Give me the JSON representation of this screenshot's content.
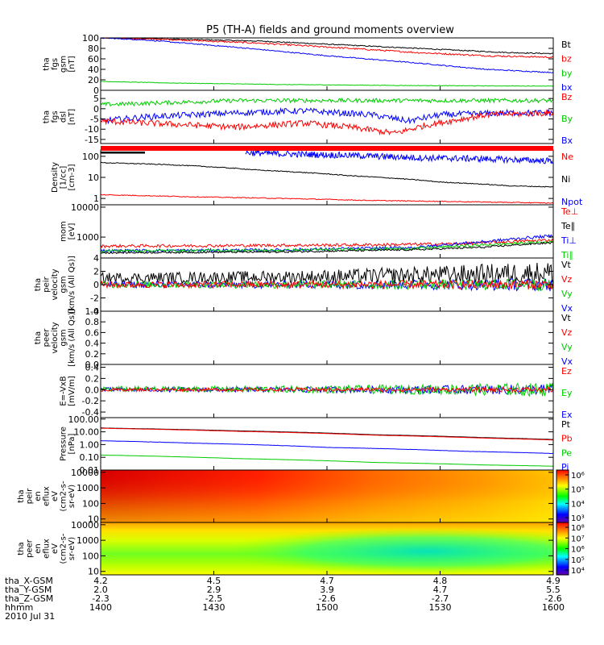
{
  "title": "P5 (TH-A) fields and ground moments overview",
  "chart_data": {
    "type": "line",
    "x_ticks": [
      "1400",
      "1430",
      "1500",
      "1530",
      "1600"
    ],
    "x_label": "hhmm",
    "date_label": "2010 Jul 31",
    "ephemeris": [
      {
        "name": "tha_X-GSM",
        "values": [
          "4.2",
          "4.5",
          "4.7",
          "4.8",
          "4.9"
        ]
      },
      {
        "name": "tha_Y-GSM",
        "values": [
          "2.0",
          "2.9",
          "3.9",
          "4.7",
          "5.5"
        ]
      },
      {
        "name": "tha_Z-GSM",
        "values": [
          "-2.3",
          "-2.5",
          "-2.6",
          "-2.7",
          "-2.6"
        ]
      }
    ],
    "panels": [
      {
        "ylabel_lines": [
          "tha",
          "fgs",
          "gsm",
          "[nT]"
        ],
        "scale": "linear",
        "yrange": [
          0,
          100
        ],
        "ticks": [
          "0",
          "20",
          "40",
          "60",
          "80",
          "100"
        ],
        "legend": [
          {
            "text": "Bt",
            "color": "#000000"
          },
          {
            "text": "bz",
            "color": "#ff0000"
          },
          {
            "text": "by",
            "color": "#00cc00"
          },
          {
            "text": "bx",
            "color": "#0000ff"
          }
        ],
        "series": [
          {
            "color": "#000000",
            "noise": 1.0,
            "points": [
              [
                0,
                100
              ],
              [
                0.15,
                98
              ],
              [
                0.35,
                94
              ],
              [
                0.55,
                86
              ],
              [
                0.75,
                78
              ],
              [
                0.9,
                72
              ],
              [
                1,
                70
              ]
            ]
          },
          {
            "color": "#ff0000",
            "noise": 1.5,
            "points": [
              [
                0,
                100
              ],
              [
                0.15,
                97
              ],
              [
                0.35,
                90
              ],
              [
                0.55,
                80
              ],
              [
                0.7,
                72
              ],
              [
                0.85,
                66
              ],
              [
                1,
                63
              ]
            ]
          },
          {
            "color": "#0000ff",
            "noise": 1.0,
            "points": [
              [
                0,
                100
              ],
              [
                0.1,
                96
              ],
              [
                0.3,
                82
              ],
              [
                0.5,
                66
              ],
              [
                0.7,
                52
              ],
              [
                0.85,
                40
              ],
              [
                1,
                34
              ]
            ]
          },
          {
            "color": "#00cc00",
            "noise": 0.5,
            "points": [
              [
                0,
                17
              ],
              [
                0.15,
                14
              ],
              [
                0.4,
                11
              ],
              [
                0.7,
                9
              ],
              [
                1,
                8
              ]
            ]
          }
        ]
      },
      {
        "ylabel_lines": [
          "tha",
          "fgs",
          "dsl",
          "[nT]"
        ],
        "scale": "linear",
        "yrange": [
          -17,
          9
        ],
        "ticks": [
          "-15",
          "-10",
          "-5",
          "0",
          "5"
        ],
        "legend": [
          {
            "text": "Bz",
            "color": "#ff0000"
          },
          {
            "text": "By",
            "color": "#00cc00"
          },
          {
            "text": "Bx",
            "color": "#0000ff"
          }
        ],
        "series": [
          {
            "color": "#00cc00",
            "noise": 1.0,
            "points": [
              [
                0,
                2
              ],
              [
                0.15,
                3
              ],
              [
                0.3,
                4
              ],
              [
                0.5,
                4
              ],
              [
                0.7,
                4
              ],
              [
                0.85,
                4
              ],
              [
                1,
                4
              ]
            ]
          },
          {
            "color": "#0000ff",
            "noise": 1.5,
            "points": [
              [
                0,
                -6
              ],
              [
                0.1,
                -4
              ],
              [
                0.3,
                -2
              ],
              [
                0.45,
                -1
              ],
              [
                0.6,
                -3
              ],
              [
                0.68,
                -6
              ],
              [
                0.75,
                -3
              ],
              [
                0.9,
                -2
              ],
              [
                1,
                -2
              ]
            ]
          },
          {
            "color": "#ff0000",
            "noise": 1.5,
            "points": [
              [
                0,
                -6
              ],
              [
                0.1,
                -7
              ],
              [
                0.3,
                -9
              ],
              [
                0.45,
                -7
              ],
              [
                0.55,
                -9
              ],
              [
                0.65,
                -12
              ],
              [
                0.72,
                -8
              ],
              [
                0.85,
                -3
              ],
              [
                1,
                -2
              ]
            ]
          }
        ]
      },
      {
        "ylabel_lines": [
          "Density",
          "[1/cc]",
          "[cm-3]"
        ],
        "scale": "log",
        "yrange": [
          0.5,
          200
        ],
        "ticks": [
          "1",
          "10",
          "100"
        ],
        "legend": [
          {
            "text": "Ne",
            "color": "#ff0000"
          },
          {
            "text": "Ni",
            "color": "#000000"
          },
          {
            "text": "Npot",
            "color": "#0000ff"
          }
        ],
        "series": [
          {
            "color": "#0000ff",
            "noise": 0.15,
            "start": 0.32,
            "points": [
              [
                0.32,
                150
              ],
              [
                0.4,
                130
              ],
              [
                0.55,
                110
              ],
              [
                0.7,
                85
              ],
              [
                0.85,
                75
              ],
              [
                1,
                60
              ]
            ]
          },
          {
            "color": "#000000",
            "noise": 0.02,
            "points": [
              [
                0,
                50
              ],
              [
                0.15,
                40
              ],
              [
                0.35,
                22
              ],
              [
                0.55,
                12
              ],
              [
                0.75,
                6
              ],
              [
                0.9,
                4
              ],
              [
                1,
                3.5
              ]
            ]
          },
          {
            "color": "#ff0000",
            "noise": 0.02,
            "points": [
              [
                0,
                1.5
              ],
              [
                0.2,
                1.2
              ],
              [
                0.4,
                1.0
              ],
              [
                0.6,
                0.8
              ],
              [
                0.8,
                0.7
              ],
              [
                1,
                0.6
              ]
            ]
          }
        ]
      },
      {
        "ylabel_lines": [
          "mom",
          "[eV]"
        ],
        "scale": "log",
        "yrange": [
          200,
          12000
        ],
        "ticks": [
          "1000",
          "10000"
        ],
        "legend": [
          {
            "text": "Te⊥",
            "color": "#ff0000"
          },
          {
            "text": "Te∥",
            "color": "#000000"
          },
          {
            "text": "Ti⊥",
            "color": "#0000ff"
          },
          {
            "text": "Ti∥",
            "color": "#00cc00"
          }
        ],
        "series": [
          {
            "color": "#ff0000",
            "noise": 0.05,
            "points": [
              [
                0,
                500
              ],
              [
                0.3,
                520
              ],
              [
                0.6,
                550
              ],
              [
                0.8,
                600
              ],
              [
                1,
                800
              ]
            ]
          },
          {
            "color": "#0000ff",
            "noise": 0.05,
            "points": [
              [
                0,
                350
              ],
              [
                0.4,
                370
              ],
              [
                0.7,
                450
              ],
              [
                0.85,
                700
              ],
              [
                1,
                1100
              ]
            ]
          },
          {
            "color": "#00cc00",
            "noise": 0.04,
            "points": [
              [
                0,
                350
              ],
              [
                0.4,
                360
              ],
              [
                0.7,
                420
              ],
              [
                0.85,
                550
              ],
              [
                1,
                700
              ]
            ]
          },
          {
            "color": "#000000",
            "noise": 0.03,
            "points": [
              [
                0,
                300
              ],
              [
                0.4,
                320
              ],
              [
                0.7,
                380
              ],
              [
                0.85,
                460
              ],
              [
                1,
                650
              ]
            ]
          }
        ]
      },
      {
        "ylabel_lines": [
          "tha",
          "peir",
          "velocity",
          "gsm",
          "[km/s (All Qs)]"
        ],
        "scale": "linear",
        "yrange": [
          -4,
          4
        ],
        "ticks": [
          "-4",
          "-2",
          "0",
          "2",
          "4"
        ],
        "legend": [
          {
            "text": "Vt",
            "color": "#000000"
          },
          {
            "text": "Vz",
            "color": "#ff0000"
          },
          {
            "text": "Vy",
            "color": "#00cc00"
          },
          {
            "text": "Vx",
            "color": "#0000ff"
          }
        ],
        "series": [
          {
            "color": "#000000",
            "noise": 0.8,
            "noiseGrow": 2.2,
            "points": [
              [
                0,
                1
              ],
              [
                0.5,
                1.2
              ],
              [
                1,
                1.8
              ]
            ]
          },
          {
            "color": "#0000ff",
            "noise": 0.5,
            "noiseGrow": 2.0,
            "points": [
              [
                0,
                0
              ],
              [
                1,
                0
              ]
            ]
          },
          {
            "color": "#00cc00",
            "noise": 0.5,
            "noiseGrow": 1.8,
            "points": [
              [
                0,
                0
              ],
              [
                1,
                0
              ]
            ]
          },
          {
            "color": "#ff0000",
            "noise": 0.5,
            "noiseGrow": 1.5,
            "points": [
              [
                0,
                0
              ],
              [
                1,
                0
              ]
            ]
          }
        ]
      },
      {
        "ylabel_lines": [
          "tha",
          "peer",
          "velocity",
          "gsm",
          "[km/s (All Qs)]"
        ],
        "scale": "linear",
        "yrange": [
          0,
          1
        ],
        "ticks": [
          "0.0",
          "0.2",
          "0.4",
          "0.6",
          "0.8",
          "1.0"
        ],
        "legend": [
          {
            "text": "Vt",
            "color": "#000000"
          },
          {
            "text": "Vz",
            "color": "#ff0000"
          },
          {
            "text": "Vy",
            "color": "#00cc00"
          },
          {
            "text": "Vx",
            "color": "#0000ff"
          }
        ],
        "series": []
      },
      {
        "ylabel_lines": [
          "E=-VxB",
          "[mV/m]"
        ],
        "scale": "linear",
        "yrange": [
          -0.5,
          0.45
        ],
        "ticks": [
          "-0.4",
          "-0.2",
          "0.0",
          "0.2",
          "0.4"
        ],
        "legend": [
          {
            "text": "Ez",
            "color": "#ff0000"
          },
          {
            "text": "Ey",
            "color": "#00cc00"
          },
          {
            "text": "Ex",
            "color": "#0000ff"
          }
        ],
        "series": [
          {
            "color": "#0000ff",
            "noise": 0.04,
            "noiseGrow": 2.5,
            "points": [
              [
                0,
                0
              ],
              [
                1,
                0
              ]
            ]
          },
          {
            "color": "#00cc00",
            "noise": 0.05,
            "noiseGrow": 2.5,
            "points": [
              [
                0,
                0.01
              ],
              [
                1,
                0
              ]
            ]
          },
          {
            "color": "#ff0000",
            "noise": 0.03,
            "noiseGrow": 1.5,
            "points": [
              [
                0,
                0
              ],
              [
                1,
                0
              ]
            ]
          }
        ]
      },
      {
        "ylabel_lines": [
          "Pressure",
          "[nPa]"
        ],
        "scale": "log",
        "yrange": [
          0.01,
          130
        ],
        "ticks": [
          "0.01",
          "0.10",
          "1.00",
          "10.00",
          "100.00"
        ],
        "legend": [
          {
            "text": "Pt",
            "color": "#000000"
          },
          {
            "text": "Pb",
            "color": "#ff0000"
          },
          {
            "text": "Pe",
            "color": "#00cc00"
          },
          {
            "text": "Pi",
            "color": "#0000ff"
          }
        ],
        "series": [
          {
            "color": "#000000",
            "noise": 0.005,
            "points": [
              [
                0,
                20
              ],
              [
                0.3,
                12
              ],
              [
                0.6,
                6
              ],
              [
                0.85,
                3.5
              ],
              [
                1,
                2.5
              ]
            ]
          },
          {
            "color": "#ff0000",
            "noise": 0.005,
            "points": [
              [
                0,
                19
              ],
              [
                0.3,
                11
              ],
              [
                0.6,
                5.5
              ],
              [
                0.85,
                3.2
              ],
              [
                1,
                2.3
              ]
            ]
          },
          {
            "color": "#0000ff",
            "noise": 0.01,
            "points": [
              [
                0,
                2.0
              ],
              [
                0.2,
                1.3
              ],
              [
                0.5,
                0.6
              ],
              [
                0.8,
                0.3
              ],
              [
                1,
                0.2
              ]
            ]
          },
          {
            "color": "#00cc00",
            "noise": 0.005,
            "points": [
              [
                0,
                0.15
              ],
              [
                0.3,
                0.08
              ],
              [
                0.6,
                0.04
              ],
              [
                0.85,
                0.025
              ],
              [
                1,
                0.02
              ]
            ]
          }
        ]
      },
      {
        "ylabel_lines": [
          "tha",
          "peir",
          "en",
          "eflux",
          "eV",
          "(cm2-s-",
          "sr-eV)"
        ],
        "scale": "log",
        "yrange": [
          6,
          14000
        ],
        "ticks": [
          "10",
          "100",
          "1000",
          "10000"
        ],
        "spectrogram": "ion",
        "colorbar_ticks": [
          "10³",
          "10⁴",
          "10⁵",
          "10⁶"
        ],
        "legend": []
      },
      {
        "ylabel_lines": [
          "tha",
          "peer",
          "en",
          "eflux",
          "eV",
          "(cm2-s-",
          "sr-eV)"
        ],
        "scale": "log",
        "yrange": [
          6,
          14000
        ],
        "ticks": [
          "10",
          "100",
          "1000",
          "10000"
        ],
        "spectrogram": "electron",
        "colorbar_ticks": [
          "10⁴",
          "10⁵",
          "10⁶",
          "10⁷",
          "10⁸"
        ],
        "legend": []
      }
    ]
  }
}
